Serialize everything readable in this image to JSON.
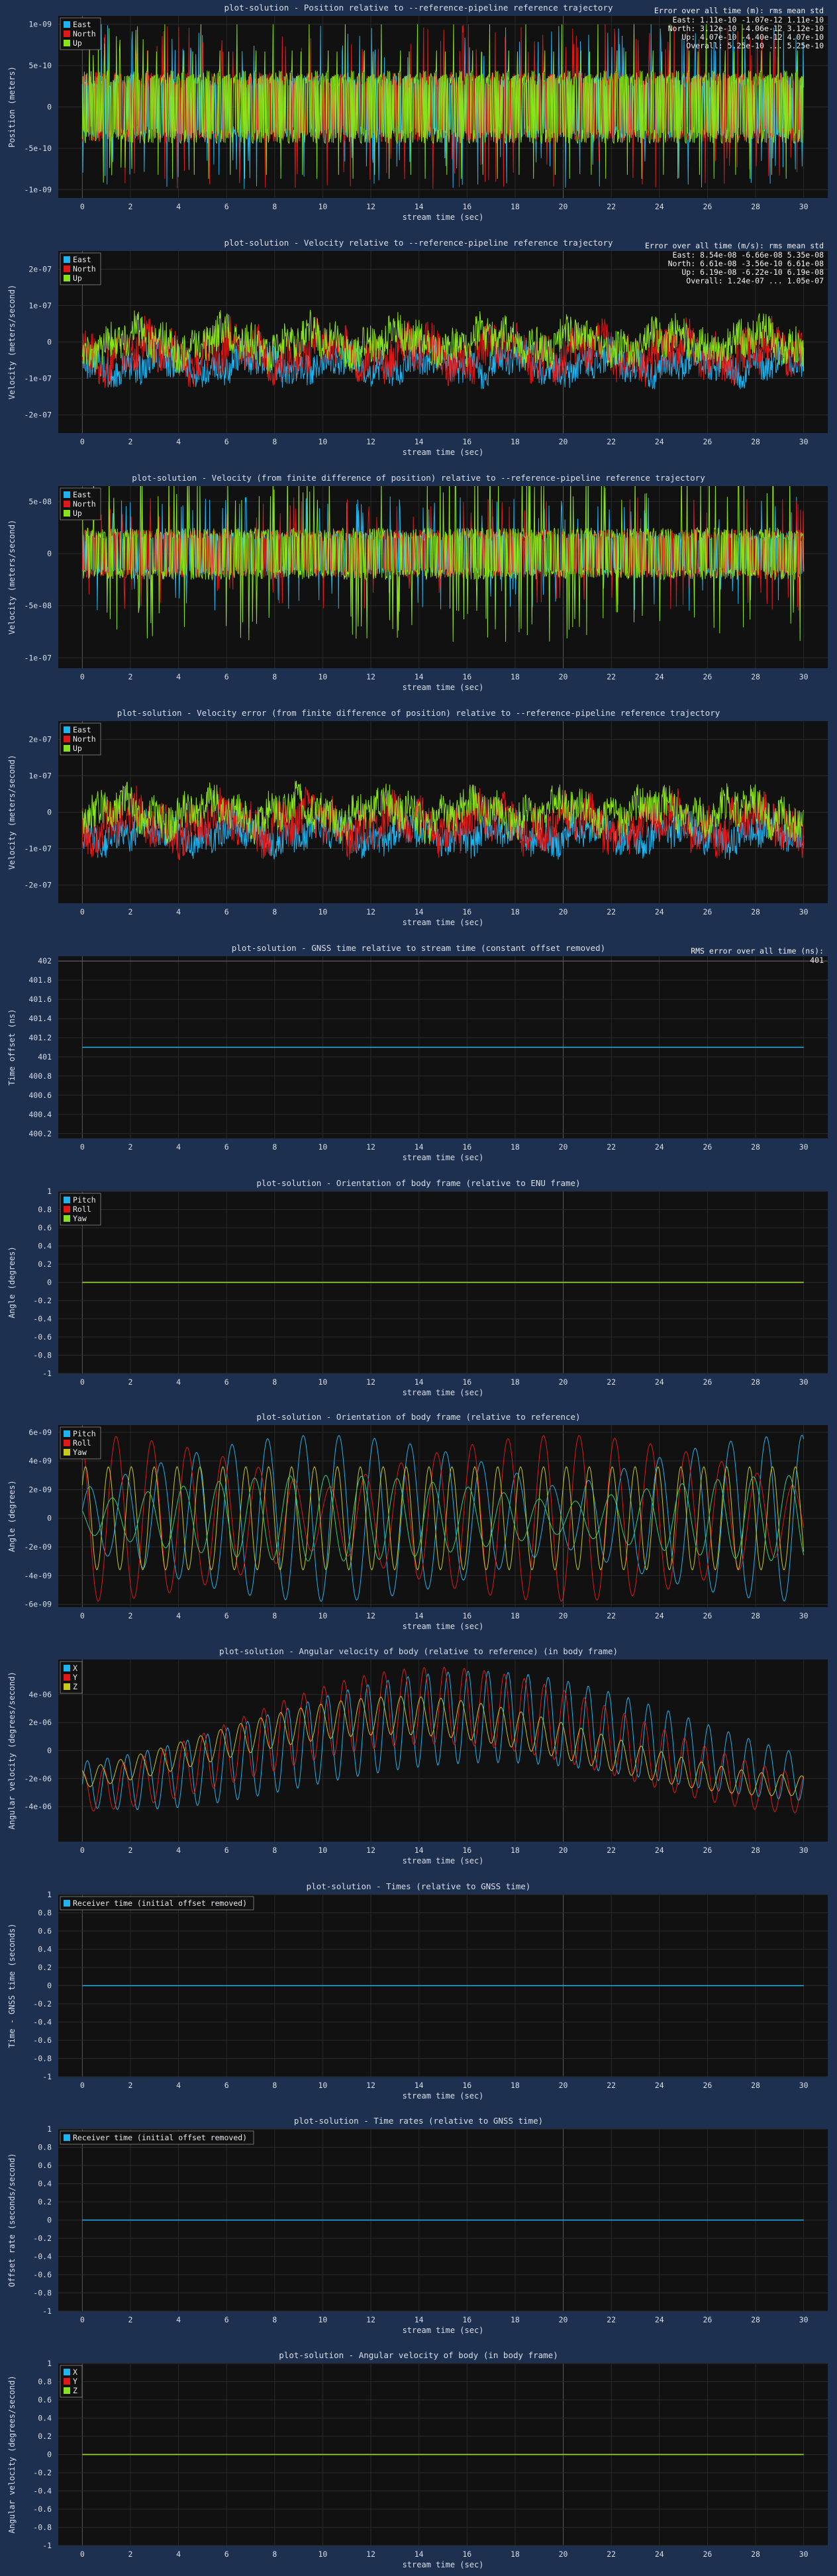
{
  "chart_data": [
    {
      "id": "position",
      "type": "line",
      "title": "plot-solution - Position relative to --reference-pipeline reference trajectory",
      "xlabel": "stream time (sec)",
      "ylabel": "Position (meters)",
      "xlim": [
        -1,
        31
      ],
      "ylim": [
        -1.1e-09,
        1.1e-09
      ],
      "yticks": [
        -1e-09,
        -5e-10,
        0,
        5e-10,
        1e-09
      ],
      "ytick_labels": [
        "-1e-09",
        "-5e-10",
        "0",
        "5e-10",
        "1e-09"
      ],
      "legend": "top-left",
      "series": [
        {
          "name": "East",
          "color": "#1eb4f0",
          "kind": "spiky",
          "amplitude": 1e-09,
          "offset": 0,
          "mid": 3.8e-10,
          "spike_prob": 0.08,
          "seed": 11
        },
        {
          "name": "North",
          "color": "#e01818",
          "kind": "spiky",
          "amplitude": 1e-09,
          "offset": 0,
          "mid": 4.2e-10,
          "spike_prob": 0.08,
          "seed": 12
        },
        {
          "name": "Up",
          "color": "#8ae21c",
          "kind": "spiky",
          "amplitude": 1e-09,
          "offset": 0,
          "mid": 4.4e-10,
          "spike_prob": 0.1,
          "seed": 13
        }
      ],
      "stats": {
        "header": "Error over all time (m):        rms         mean        std",
        "rows": [
          "East: 1.11e-10 -1.07e-12  1.11e-10",
          "North: 3.12e-10 -4.06e-12  3.12e-10",
          "Up: 4.07e-10 -4.40e-12  4.07e-10",
          "Overall: 5.25e-10  ...  5.25e-10"
        ]
      }
    },
    {
      "id": "velocity",
      "type": "line",
      "title": "plot-solution - Velocity relative to --reference-pipeline reference trajectory",
      "xlabel": "stream time (sec)",
      "ylabel": "Velocity (meters/second)",
      "xlim": [
        -1,
        31
      ],
      "ylim": [
        -2.5e-07,
        2.5e-07
      ],
      "yticks": [
        -2e-07,
        -1e-07,
        0,
        1e-07,
        2e-07
      ],
      "ytick_labels": [
        "-2e-07",
        "-1e-07",
        "0",
        "1e-07",
        "2e-07"
      ],
      "legend": "top-left",
      "series": [
        {
          "name": "East",
          "color": "#1eb4f0",
          "kind": "noise",
          "amplitude": 5.5e-08,
          "offset": -6e-08,
          "seed": 21
        },
        {
          "name": "North",
          "color": "#e01818",
          "kind": "noise",
          "amplitude": 7.5e-08,
          "offset": -3e-08,
          "seed": 22
        },
        {
          "name": "Up",
          "color": "#8ae21c",
          "kind": "noise",
          "amplitude": 6.5e-08,
          "offset": 0,
          "seed": 23
        }
      ],
      "stats": {
        "header": "Error over all time (m/s):      rms         mean        std",
        "rows": [
          "East: 8.54e-08 -6.66e-08  5.35e-08",
          "North: 6.61e-08 -3.56e-10  6.61e-08",
          "Up: 6.19e-08 -6.22e-10  6.19e-08",
          "Overall: 1.24e-07  ...  1.05e-07"
        ]
      }
    },
    {
      "id": "velocity-fd",
      "type": "line",
      "title": "plot-solution - Velocity (from finite difference of position) relative to --reference-pipeline reference trajectory",
      "xlabel": "stream time (sec)",
      "ylabel": "Velocity (meters/second)",
      "xlim": [
        -1,
        31
      ],
      "ylim": [
        -1.1e-07,
        6.5e-08
      ],
      "yticks": [
        -1e-07,
        -5e-08,
        0,
        5e-08
      ],
      "ytick_labels": [
        "-1e-07",
        "-5e-08",
        "0",
        "5e-08"
      ],
      "legend": "top-left",
      "series": [
        {
          "name": "East",
          "color": "#1eb4f0",
          "kind": "spiky",
          "amplitude": 5.5e-08,
          "offset": 0,
          "mid": 2e-08,
          "spike_prob": 0.06,
          "seed": 31
        },
        {
          "name": "North",
          "color": "#e01818",
          "kind": "spiky",
          "amplitude": 5.5e-08,
          "offset": 0,
          "mid": 2.3e-08,
          "spike_prob": 0.06,
          "seed": 32
        },
        {
          "name": "Up",
          "color": "#8ae21c",
          "kind": "spiky",
          "amplitude": 8.5e-08,
          "offset": 0,
          "mid": 2.5e-08,
          "spike_prob": 0.1,
          "seed": 33
        }
      ]
    },
    {
      "id": "velocity-error-fd",
      "type": "line",
      "title": "plot-solution - Velocity error (from finite difference of position) relative to --reference-pipeline reference trajectory",
      "xlabel": "stream time (sec)",
      "ylabel": "Velocity (meters/second)",
      "xlim": [
        -1,
        31
      ],
      "ylim": [
        -2.5e-07,
        2.5e-07
      ],
      "yticks": [
        -2e-07,
        -1e-07,
        0,
        1e-07,
        2e-07
      ],
      "ytick_labels": [
        "-2e-07",
        "-1e-07",
        "0",
        "1e-07",
        "2e-07"
      ],
      "legend": "top-left",
      "series": [
        {
          "name": "East",
          "color": "#1eb4f0",
          "kind": "noise",
          "amplitude": 5.5e-08,
          "offset": -6e-08,
          "seed": 41
        },
        {
          "name": "North",
          "color": "#e01818",
          "kind": "noise",
          "amplitude": 7.5e-08,
          "offset": -3e-08,
          "seed": 42
        },
        {
          "name": "Up",
          "color": "#8ae21c",
          "kind": "noise",
          "amplitude": 6.5e-08,
          "offset": 0,
          "seed": 43
        }
      ]
    },
    {
      "id": "gnss-time",
      "type": "line",
      "title": "plot-solution - GNSS time relative to stream time (constant offset removed)",
      "xlabel": "stream time (sec)",
      "ylabel": "Time offset (ns)",
      "xlim": [
        -1,
        31
      ],
      "ylim": [
        400.15,
        402.05
      ],
      "yticks": [
        400.2,
        400.4,
        400.6,
        400.8,
        401,
        401.2,
        401.4,
        401.6,
        401.8,
        402
      ],
      "ytick_labels": [
        "400.2",
        "400.4",
        "400.6",
        "400.8",
        "401",
        "401.2",
        "401.4",
        "401.6",
        "401.8",
        "402"
      ],
      "hlines": [
        402
      ],
      "series": [
        {
          "name": "",
          "color": "#1eb4f0",
          "kind": "flat",
          "value": 401.1
        }
      ],
      "stats": {
        "header": "RMS error over all time (ns):",
        "rows": [
          "401"
        ]
      }
    },
    {
      "id": "orientation-enu",
      "type": "line",
      "title": "plot-solution - Orientation of body frame (relative to ENU frame)",
      "xlabel": "stream time (sec)",
      "ylabel": "Angle (degrees)",
      "xlim": [
        -1,
        31
      ],
      "ylim": [
        -1,
        1
      ],
      "yticks": [
        -1,
        -0.8,
        -0.6,
        -0.4,
        -0.2,
        0,
        0.2,
        0.4,
        0.6,
        0.8,
        1
      ],
      "ytick_labels": [
        "-1",
        "-0.8",
        "-0.6",
        "-0.4",
        "-0.2",
        "0",
        "0.2",
        "0.4",
        "0.6",
        "0.8",
        "1"
      ],
      "legend": "top-left",
      "series": [
        {
          "name": "Pitch",
          "color": "#1eb4f0",
          "kind": "flat",
          "value": 0
        },
        {
          "name": "Roll",
          "color": "#e01818",
          "kind": "flat",
          "value": 0
        },
        {
          "name": "Yaw",
          "color": "#8ae21c",
          "kind": "flat",
          "value": 0
        }
      ]
    },
    {
      "id": "orientation-ref",
      "type": "line",
      "title": "plot-solution - Orientation of body frame (relative to reference)",
      "xlabel": "stream time (sec)",
      "ylabel": "Angle (degrees)",
      "xlim": [
        -1,
        31
      ],
      "ylim": [
        -6.2e-09,
        6.5e-09
      ],
      "yticks": [
        -6e-09,
        -4e-09,
        -2e-09,
        0,
        2e-09,
        4e-09,
        6e-09
      ],
      "ytick_labels": [
        "-6e-09",
        "-4e-09",
        "-2e-09",
        "0",
        "2e-09",
        "4e-09",
        "6e-09"
      ],
      "legend": "top-left",
      "series": [
        {
          "name": "Pitch",
          "color": "#1eb4f0",
          "kind": "wave",
          "amplitude": 5.8e-09,
          "freq": 1.35,
          "env": "mid",
          "offset": 0,
          "phase": 0.3
        },
        {
          "name": "Roll",
          "color": "#e01818",
          "kind": "wave",
          "amplitude": 5.8e-09,
          "freq": 1.35,
          "env": "ends",
          "offset": 0,
          "phase": 1.9
        },
        {
          "name": "Yaw",
          "color": "#c8c81e",
          "kind": "wave",
          "amplitude": 3.6e-09,
          "freq": 2.1,
          "env": "flat",
          "offset": 0,
          "phase": 0.7
        },
        {
          "name": "",
          "color": "#2ed07a",
          "kind": "wave",
          "amplitude": 3e-09,
          "freq": 1.35,
          "env": "mid",
          "offset": 0,
          "phase": 2.6
        }
      ]
    },
    {
      "id": "angular-velocity-ref",
      "type": "line",
      "title": "plot-solution - Angular velocity of body (relative to reference) (in body frame)",
      "xlabel": "stream time (sec)",
      "ylabel": "Angular velocity (degrees/second)",
      "xlim": [
        -1,
        31
      ],
      "ylim": [
        -6.5e-06,
        6.5e-06
      ],
      "yticks": [
        -4e-06,
        -2e-06,
        0,
        2e-06,
        4e-06
      ],
      "ytick_labels": [
        "-4e-06",
        "-2e-06",
        "0",
        "2e-06",
        "4e-06"
      ],
      "legend": "top-left",
      "series": [
        {
          "name": "X",
          "color": "#1eb4f0",
          "kind": "ang",
          "amplitude": 6e-06,
          "freq": 2.4,
          "drift": 2.4e-06,
          "phase": 0.0
        },
        {
          "name": "Y",
          "color": "#e01818",
          "kind": "ang",
          "amplitude": 5e-06,
          "freq": 2.4,
          "drift": 3.2e-06,
          "phase": 1.2
        },
        {
          "name": "Z",
          "color": "#c8c81e",
          "kind": "ang",
          "amplitude": 2.5e-06,
          "freq": 2.4,
          "drift": 2.5e-06,
          "phase": 2.2
        }
      ]
    },
    {
      "id": "times",
      "type": "line",
      "title": "plot-solution - Times (relative to GNSS time)",
      "xlabel": "stream time (sec)",
      "ylabel": "Time - GNSS time (seconds)",
      "xlim": [
        -1,
        31
      ],
      "ylim": [
        -1,
        1
      ],
      "yticks": [
        -1,
        -0.8,
        -0.6,
        -0.4,
        -0.2,
        0,
        0.2,
        0.4,
        0.6,
        0.8,
        1
      ],
      "ytick_labels": [
        "-1",
        "-0.8",
        "-0.6",
        "-0.4",
        "-0.2",
        "0",
        "0.2",
        "0.4",
        "0.6",
        "0.8",
        "1"
      ],
      "legend": "top-left",
      "series": [
        {
          "name": "Receiver time (initial offset removed)",
          "color": "#1eb4f0",
          "kind": "flat",
          "value": 0
        }
      ]
    },
    {
      "id": "time-rates",
      "type": "line",
      "title": "plot-solution - Time rates (relative to GNSS time)",
      "xlabel": "stream time (sec)",
      "ylabel": "Offset rate (seconds/second)",
      "xlim": [
        -1,
        31
      ],
      "ylim": [
        -1,
        1
      ],
      "yticks": [
        -1,
        -0.8,
        -0.6,
        -0.4,
        -0.2,
        0,
        0.2,
        0.4,
        0.6,
        0.8,
        1
      ],
      "ytick_labels": [
        "-1",
        "-0.8",
        "-0.6",
        "-0.4",
        "-0.2",
        "0",
        "0.2",
        "0.4",
        "0.6",
        "0.8",
        "1"
      ],
      "legend": "top-left",
      "series": [
        {
          "name": "Receiver time (initial offset removed)",
          "color": "#1eb4f0",
          "kind": "flat",
          "value": 0
        }
      ]
    },
    {
      "id": "angular-velocity",
      "type": "line",
      "title": "plot-solution - Angular velocity of body (in body frame)",
      "xlabel": "stream time (sec)",
      "ylabel": "Angular velocity (degrees/second)",
      "xlim": [
        -1,
        31
      ],
      "ylim": [
        -1,
        1
      ],
      "yticks": [
        -1,
        -0.8,
        -0.6,
        -0.4,
        -0.2,
        0,
        0.2,
        0.4,
        0.6,
        0.8,
        1
      ],
      "ytick_labels": [
        "-1",
        "-0.8",
        "-0.6",
        "-0.4",
        "-0.2",
        "0",
        "0.2",
        "0.4",
        "0.6",
        "0.8",
        "1"
      ],
      "legend": "top-left",
      "series": [
        {
          "name": "X",
          "color": "#1eb4f0",
          "kind": "flat",
          "value": 0
        },
        {
          "name": "Y",
          "color": "#e01818",
          "kind": "flat",
          "value": 0
        },
        {
          "name": "Z",
          "color": "#8ae21c",
          "kind": "flat",
          "value": 0
        }
      ]
    }
  ],
  "xticks": [
    0,
    2,
    4,
    6,
    8,
    10,
    12,
    14,
    16,
    18,
    20,
    22,
    24,
    26,
    28,
    30
  ],
  "theme": {
    "page_bg": "#1e3050",
    "plot_bg": "#111111",
    "grid": "#2a2a2a",
    "vline": "#5a5a5a",
    "text": "#d9dee8"
  }
}
